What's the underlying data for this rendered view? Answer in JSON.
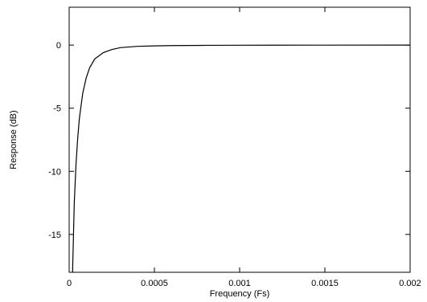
{
  "chart_data": {
    "type": "line",
    "title": "",
    "xlabel": "Frequency (Fs)",
    "ylabel": "Response (dB)",
    "xlim": [
      0,
      0.002
    ],
    "ylim": [
      -18,
      3
    ],
    "grid": false,
    "legend": "none",
    "x_ticks": [
      {
        "value": 0,
        "label": "0"
      },
      {
        "value": 0.0005,
        "label": "0.0005"
      },
      {
        "value": 0.001,
        "label": "0.001"
      },
      {
        "value": 0.0015,
        "label": "0.0015"
      },
      {
        "value": 0.002,
        "label": "0.002"
      }
    ],
    "y_ticks": [
      {
        "value": 0,
        "label": "0"
      },
      {
        "value": -5,
        "label": "-5"
      },
      {
        "value": -10,
        "label": "-10"
      },
      {
        "value": -15,
        "label": "-15"
      }
    ],
    "series": [
      {
        "color": "#000000",
        "x": [
          2e-05,
          3e-05,
          4e-05,
          5e-05,
          6e-05,
          8e-05,
          0.0001,
          0.00012,
          0.00015,
          0.0002,
          0.00025,
          0.0003,
          0.0004,
          0.0005,
          0.0006,
          0.0008,
          0.001,
          0.0012,
          0.0015,
          0.002
        ],
        "y": [
          -18,
          -12.5,
          -9.5,
          -7.4,
          -5.8,
          -3.8,
          -2.6,
          -1.8,
          -1.1,
          -0.6,
          -0.35,
          -0.2,
          -0.1,
          -0.06,
          -0.04,
          -0.02,
          -0.01,
          -0.005,
          -0.002,
          0
        ]
      }
    ]
  }
}
